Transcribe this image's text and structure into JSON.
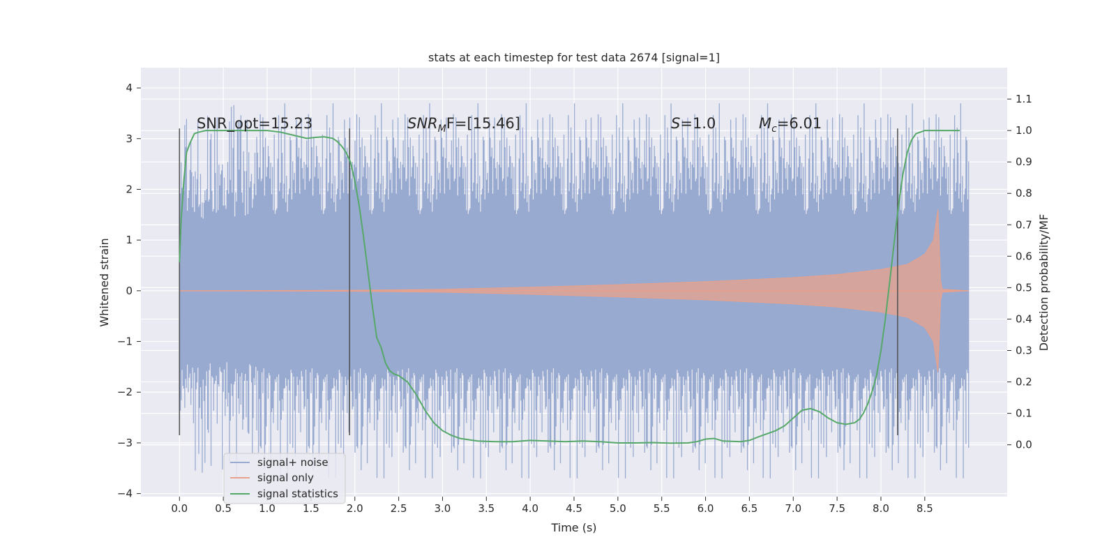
{
  "chart_data": {
    "type": "line",
    "title": "stats at each timestep for test data 2674 [signal=1]",
    "xlabel": "Time (s)",
    "ylabel": "Whitened strain",
    "y2label": "Detection probability/MF",
    "xlim": [
      -0.44,
      9.44
    ],
    "ylim": [
      -4.06,
      4.4
    ],
    "y2lim": [
      -0.165,
      1.2
    ],
    "x_ticks": [
      0.0,
      0.5,
      1.0,
      1.5,
      2.0,
      2.5,
      3.0,
      3.5,
      4.0,
      4.5,
      5.0,
      5.5,
      6.0,
      6.5,
      7.0,
      7.5,
      8.0,
      8.5
    ],
    "x_tick_labels": [
      "0.0",
      "0.5",
      "1.0",
      "1.5",
      "2.0",
      "2.5",
      "3.0",
      "3.5",
      "4.0",
      "4.5",
      "5.0",
      "5.5",
      "6.0",
      "6.5",
      "7.0",
      "7.5",
      "8.0",
      "8.5"
    ],
    "y_ticks": [
      4,
      3,
      2,
      1,
      0,
      -1,
      -2,
      -3,
      -4
    ],
    "y_tick_labels": [
      "4",
      "3",
      "2",
      "1",
      "0",
      "−1",
      "−2",
      "−3",
      "−4"
    ],
    "y2_ticks": [
      1.1,
      1.0,
      0.9,
      0.8,
      0.7,
      0.6,
      0.5,
      0.4,
      0.3,
      0.2,
      0.1,
      0.0
    ],
    "y2_tick_labels": [
      "1.1",
      "1.0",
      "0.9",
      "0.8",
      "0.7",
      "0.6",
      "0.5",
      "0.4",
      "0.3",
      "0.2",
      "0.1",
      "0.0"
    ],
    "series": [
      {
        "name": "signal+ noise",
        "color": "#98aad0",
        "description": "whitened strain, noise envelope approx ±1.4 with spikes to ±3.5",
        "x_range": [
          0.0,
          9.0
        ],
        "envelope": 1.4
      },
      {
        "name": "signal only",
        "color": "#e8a18c",
        "description": "chirp signal growing toward merger near t=8.65",
        "amplitude_x": [
          0.0,
          2.0,
          3.0,
          4.0,
          5.0,
          6.0,
          7.0,
          7.5,
          8.0,
          8.3,
          8.5,
          8.6,
          8.65,
          8.68,
          8.7,
          9.0
        ],
        "amplitude_y": [
          0.0,
          0.01,
          0.03,
          0.07,
          0.12,
          0.18,
          0.26,
          0.32,
          0.42,
          0.52,
          0.72,
          1.0,
          1.6,
          0.2,
          0.03,
          0.0
        ]
      },
      {
        "name": "signal statistics",
        "color": "#55a868",
        "axis": "right",
        "x": [
          0.0,
          0.02,
          0.05,
          0.08,
          0.12,
          0.17,
          0.22,
          0.3,
          0.4,
          0.6,
          1.0,
          1.15,
          1.3,
          1.45,
          1.55,
          1.65,
          1.75,
          1.8,
          1.85,
          1.9,
          1.95,
          2.0,
          2.05,
          2.1,
          2.15,
          2.2,
          2.25,
          2.3,
          2.35,
          2.4,
          2.45,
          2.5,
          2.6,
          2.7,
          2.8,
          2.9,
          3.0,
          3.1,
          3.2,
          3.4,
          3.6,
          3.8,
          4.0,
          4.2,
          4.4,
          4.6,
          4.8,
          5.0,
          5.2,
          5.4,
          5.6,
          5.8,
          5.9,
          6.0,
          6.1,
          6.2,
          6.4,
          6.5,
          6.6,
          6.7,
          6.8,
          6.9,
          7.0,
          7.1,
          7.2,
          7.3,
          7.4,
          7.5,
          7.6,
          7.7,
          7.75,
          7.8,
          7.85,
          7.9,
          7.95,
          8.0,
          8.05,
          8.1,
          8.15,
          8.2,
          8.25,
          8.3,
          8.35,
          8.4,
          8.45,
          8.5,
          8.6,
          8.8,
          8.9
        ],
        "y": [
          0.58,
          0.72,
          0.84,
          0.93,
          0.96,
          0.99,
          0.995,
          1.0,
          1.0,
          1.0,
          1.0,
          0.995,
          0.985,
          0.975,
          0.978,
          0.98,
          0.975,
          0.965,
          0.95,
          0.93,
          0.9,
          0.84,
          0.76,
          0.66,
          0.55,
          0.44,
          0.34,
          0.31,
          0.26,
          0.235,
          0.225,
          0.22,
          0.2,
          0.16,
          0.11,
          0.07,
          0.045,
          0.03,
          0.02,
          0.012,
          0.01,
          0.01,
          0.014,
          0.012,
          0.01,
          0.012,
          0.01,
          0.006,
          0.006,
          0.007,
          0.005,
          0.006,
          0.01,
          0.018,
          0.02,
          0.012,
          0.01,
          0.014,
          0.025,
          0.035,
          0.045,
          0.06,
          0.085,
          0.11,
          0.115,
          0.105,
          0.085,
          0.07,
          0.065,
          0.07,
          0.08,
          0.1,
          0.13,
          0.17,
          0.22,
          0.3,
          0.4,
          0.52,
          0.64,
          0.76,
          0.86,
          0.93,
          0.97,
          0.99,
          0.995,
          1.0,
          1.0,
          1.0,
          1.0
        ]
      }
    ],
    "vertical_lines": [
      0.0,
      1.94,
      8.19
    ],
    "annotations": [
      {
        "text": "SNR_opt=15.23",
        "x": 0.2
      },
      {
        "text": "SNR_MF=[15.46]",
        "x": 2.6
      },
      {
        "text": "S=1.0",
        "x": 5.6
      },
      {
        "text": "M_c=6.01",
        "x": 6.6
      }
    ],
    "annotation_y": 3.3,
    "legend_position": "bottom-left",
    "grid": true
  },
  "annotations_text": {
    "snr_opt": "SNR_opt=15.23",
    "snr_mf_base": "SNR",
    "snr_mf_sub": "M",
    "snr_mf_rest": "F=[15.46]",
    "s_base": "S",
    "s_rest": "=1.0",
    "mc_base": "M",
    "mc_sub": "c",
    "mc_rest": "=6.01"
  },
  "legend": {
    "items": [
      "signal+ noise",
      "signal only",
      "signal statistics"
    ]
  }
}
